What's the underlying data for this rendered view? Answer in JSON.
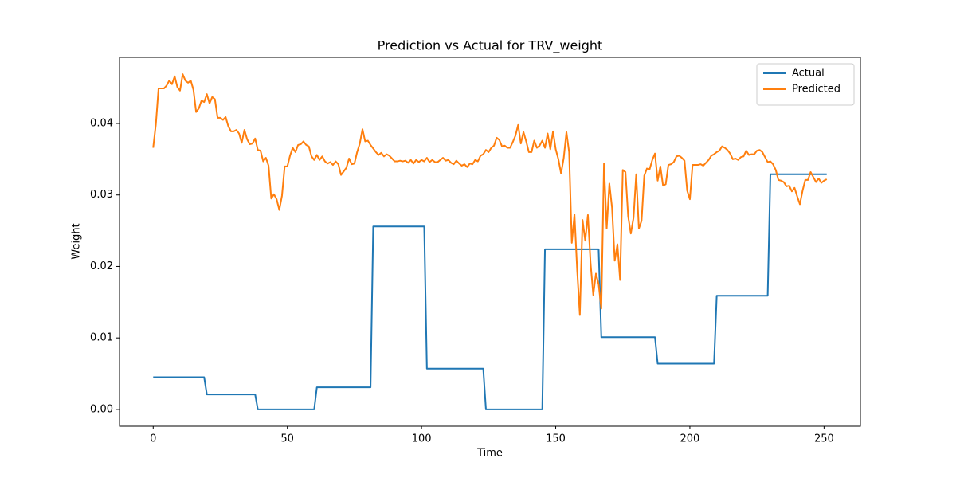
{
  "chart_data": {
    "type": "line",
    "title": "Prediction vs Actual for TRV_weight",
    "x_label": "Time",
    "y_label": "Weight",
    "x": [
      0,
      1,
      2,
      3,
      4,
      5,
      6,
      7,
      8,
      9,
      10,
      11,
      12,
      13,
      14,
      15,
      16,
      17,
      18,
      19,
      20,
      21,
      22,
      23,
      24,
      25,
      26,
      27,
      28,
      29,
      30,
      31,
      32,
      33,
      34,
      35,
      36,
      37,
      38,
      39,
      40,
      41,
      42,
      43,
      44,
      45,
      46,
      47,
      48,
      49,
      50,
      51,
      52,
      53,
      54,
      55,
      56,
      57,
      58,
      59,
      60,
      61,
      62,
      63,
      64,
      65,
      66,
      67,
      68,
      69,
      70,
      71,
      72,
      73,
      74,
      75,
      76,
      77,
      78,
      79,
      80,
      81,
      82,
      83,
      84,
      85,
      86,
      87,
      88,
      89,
      90,
      91,
      92,
      93,
      94,
      95,
      96,
      97,
      98,
      99,
      100,
      101,
      102,
      103,
      104,
      105,
      106,
      107,
      108,
      109,
      110,
      111,
      112,
      113,
      114,
      115,
      116,
      117,
      118,
      119,
      120,
      121,
      122,
      123,
      124,
      125,
      126,
      127,
      128,
      129,
      130,
      131,
      132,
      133,
      134,
      135,
      136,
      137,
      138,
      139,
      140,
      141,
      142,
      143,
      144,
      145,
      146,
      147,
      148,
      149,
      150,
      151,
      152,
      153,
      154,
      155,
      156,
      157,
      158,
      159,
      160,
      161,
      162,
      163,
      164,
      165,
      166,
      167,
      168,
      169,
      170,
      171,
      172,
      173,
      174,
      175,
      176,
      177,
      178,
      179,
      180,
      181,
      182,
      183,
      184,
      185,
      186,
      187,
      188,
      189,
      190,
      191,
      192,
      193,
      194,
      195,
      196,
      197,
      198,
      199,
      200,
      201,
      202,
      203,
      204,
      205,
      206,
      207,
      208,
      209,
      210,
      211,
      212,
      213,
      214,
      215,
      216,
      217,
      218,
      219,
      220,
      221,
      222,
      223,
      224,
      225,
      226,
      227,
      228,
      229,
      230,
      231,
      232,
      233,
      234,
      235,
      236,
      237,
      238,
      239,
      240,
      241,
      242,
      243,
      244,
      245,
      246,
      247,
      248,
      249,
      250,
      251
    ],
    "series": [
      {
        "name": "Actual",
        "color": "#1f77b4",
        "values": [
          0.0045,
          0.0045,
          0.0045,
          0.0045,
          0.0045,
          0.0045,
          0.0045,
          0.0045,
          0.0045,
          0.0045,
          0.0045,
          0.0045,
          0.0045,
          0.0045,
          0.0045,
          0.0045,
          0.0045,
          0.0045,
          0.0045,
          0.0045,
          0.0021,
          0.0021,
          0.0021,
          0.0021,
          0.0021,
          0.0021,
          0.0021,
          0.0021,
          0.0021,
          0.0021,
          0.0021,
          0.0021,
          0.0021,
          0.0021,
          0.0021,
          0.0021,
          0.0021,
          0.0021,
          0.0021,
          0,
          0,
          0,
          0,
          0,
          0,
          0,
          0,
          0,
          0,
          0,
          0,
          0,
          0,
          0,
          0,
          0,
          0,
          0,
          0,
          0,
          0,
          0.0031,
          0.0031,
          0.0031,
          0.0031,
          0.0031,
          0.0031,
          0.0031,
          0.0031,
          0.0031,
          0.0031,
          0.0031,
          0.0031,
          0.0031,
          0.0031,
          0.0031,
          0.0031,
          0.0031,
          0.0031,
          0.0031,
          0.0031,
          0.0031,
          0.0256,
          0.0256,
          0.0256,
          0.0256,
          0.0256,
          0.0256,
          0.0256,
          0.0256,
          0.0256,
          0.0256,
          0.0256,
          0.0256,
          0.0256,
          0.0256,
          0.0256,
          0.0256,
          0.0256,
          0.0256,
          0.0256,
          0.0256,
          0.0057,
          0.0057,
          0.0057,
          0.0057,
          0.0057,
          0.0057,
          0.0057,
          0.0057,
          0.0057,
          0.0057,
          0.0057,
          0.0057,
          0.0057,
          0.0057,
          0.0057,
          0.0057,
          0.0057,
          0.0057,
          0.0057,
          0.0057,
          0.0057,
          0.0057,
          0,
          0,
          0,
          0,
          0,
          0,
          0,
          0,
          0,
          0,
          0,
          0,
          0,
          0,
          0,
          0,
          0,
          0,
          0,
          0,
          0,
          0,
          0.0224,
          0.0224,
          0.0224,
          0.0224,
          0.0224,
          0.0224,
          0.0224,
          0.0224,
          0.0224,
          0.0224,
          0.0224,
          0.0224,
          0.0224,
          0.0224,
          0.0224,
          0.0224,
          0.0224,
          0.0224,
          0.0224,
          0.0224,
          0.0224,
          0.0101,
          0.0101,
          0.0101,
          0.0101,
          0.0101,
          0.0101,
          0.0101,
          0.0101,
          0.0101,
          0.0101,
          0.0101,
          0.0101,
          0.0101,
          0.0101,
          0.0101,
          0.0101,
          0.0101,
          0.0101,
          0.0101,
          0.0101,
          0.0101,
          0.0064,
          0.0064,
          0.0064,
          0.0064,
          0.0064,
          0.0064,
          0.0064,
          0.0064,
          0.0064,
          0.0064,
          0.0064,
          0.0064,
          0.0064,
          0.0064,
          0.0064,
          0.0064,
          0.0064,
          0.0064,
          0.0064,
          0.0064,
          0.0064,
          0.0064,
          0.0159,
          0.0159,
          0.0159,
          0.0159,
          0.0159,
          0.0159,
          0.0159,
          0.0159,
          0.0159,
          0.0159,
          0.0159,
          0.0159,
          0.0159,
          0.0159,
          0.0159,
          0.0159,
          0.0159,
          0.0159,
          0.0159,
          0.0159,
          0.0329,
          0.0329,
          0.0329,
          0.0329,
          0.0329,
          0.0329,
          0.0329,
          0.0329,
          0.0329,
          0.0329,
          0.0329,
          0.0329,
          0.0329,
          0.0329,
          0.0329,
          0.0329,
          0.0329,
          0.0329,
          0.0329,
          0.0329,
          0.0329,
          0.0329
        ]
      },
      {
        "name": "Predicted",
        "color": "#ff7f0e",
        "values": [
          0.0366,
          0.0399,
          0.0449,
          0.0449,
          0.0449,
          0.0453,
          0.046,
          0.0455,
          0.0466,
          0.0451,
          0.0446,
          0.0469,
          0.046,
          0.0457,
          0.046,
          0.0447,
          0.0416,
          0.0421,
          0.0432,
          0.043,
          0.0441,
          0.0428,
          0.0437,
          0.0434,
          0.0408,
          0.0408,
          0.0405,
          0.0409,
          0.0396,
          0.0389,
          0.0389,
          0.0391,
          0.0386,
          0.0373,
          0.0391,
          0.0378,
          0.0371,
          0.0372,
          0.0379,
          0.0363,
          0.0362,
          0.0347,
          0.0352,
          0.0341,
          0.0295,
          0.0301,
          0.0294,
          0.0279,
          0.0299,
          0.034,
          0.034,
          0.0355,
          0.0366,
          0.036,
          0.037,
          0.0371,
          0.0375,
          0.037,
          0.0368,
          0.0354,
          0.0349,
          0.0356,
          0.0349,
          0.0354,
          0.0347,
          0.0344,
          0.0346,
          0.0342,
          0.0347,
          0.0343,
          0.0328,
          0.0333,
          0.0338,
          0.0351,
          0.0343,
          0.0344,
          0.036,
          0.0372,
          0.0392,
          0.0375,
          0.0376,
          0.037,
          0.0365,
          0.036,
          0.0356,
          0.0359,
          0.0354,
          0.0357,
          0.0355,
          0.0351,
          0.0347,
          0.0347,
          0.0348,
          0.0347,
          0.0348,
          0.0345,
          0.0349,
          0.0344,
          0.0349,
          0.0346,
          0.0349,
          0.0347,
          0.0352,
          0.0346,
          0.0349,
          0.0346,
          0.0346,
          0.0349,
          0.0352,
          0.0348,
          0.0349,
          0.0345,
          0.0343,
          0.0348,
          0.0344,
          0.0341,
          0.0343,
          0.0339,
          0.0344,
          0.0343,
          0.0349,
          0.0347,
          0.0355,
          0.0357,
          0.0363,
          0.036,
          0.0366,
          0.0369,
          0.038,
          0.0377,
          0.0368,
          0.0369,
          0.0366,
          0.0366,
          0.0374,
          0.0383,
          0.0398,
          0.0372,
          0.0388,
          0.0375,
          0.036,
          0.036,
          0.0376,
          0.0366,
          0.0369,
          0.0376,
          0.0366,
          0.0386,
          0.0364,
          0.0389,
          0.0364,
          0.035,
          0.033,
          0.0352,
          0.0388,
          0.036,
          0.0233,
          0.0273,
          0.0195,
          0.0132,
          0.0265,
          0.0236,
          0.0272,
          0.0204,
          0.016,
          0.019,
          0.0175,
          0.0141,
          0.0344,
          0.0253,
          0.0316,
          0.0282,
          0.0208,
          0.0231,
          0.0181,
          0.0335,
          0.0332,
          0.027,
          0.0246,
          0.0268,
          0.0329,
          0.0253,
          0.0264,
          0.0327,
          0.0337,
          0.0336,
          0.0349,
          0.0358,
          0.032,
          0.034,
          0.0313,
          0.0315,
          0.0342,
          0.0343,
          0.0346,
          0.0354,
          0.0355,
          0.0352,
          0.0348,
          0.0306,
          0.0294,
          0.0342,
          0.0342,
          0.0342,
          0.0343,
          0.0341,
          0.0345,
          0.0349,
          0.0355,
          0.0357,
          0.036,
          0.0362,
          0.0368,
          0.0366,
          0.0363,
          0.0358,
          0.035,
          0.0351,
          0.0349,
          0.0353,
          0.0354,
          0.0362,
          0.0356,
          0.0357,
          0.0357,
          0.0362,
          0.0363,
          0.036,
          0.0353,
          0.0346,
          0.0347,
          0.0343,
          0.0335,
          0.0321,
          0.032,
          0.0318,
          0.0312,
          0.0313,
          0.0305,
          0.031,
          0.0298,
          0.0287,
          0.0306,
          0.0321,
          0.0321,
          0.0332,
          0.0325,
          0.0318,
          0.0323,
          0.0317,
          0.032,
          0.0322
        ]
      }
    ],
    "xlim": [
      -12.55,
      263.55
    ],
    "xticks": [
      0,
      50,
      100,
      150,
      200,
      250
    ],
    "ylim": [
      -0.00235,
      0.04925
    ],
    "yticks": [
      {
        "value": 0,
        "label": "0.00"
      },
      {
        "value": 0.01,
        "label": "0.01"
      },
      {
        "value": 0.02,
        "label": "0.02"
      },
      {
        "value": 0.03,
        "label": "0.03"
      },
      {
        "value": 0.04,
        "label": "0.04"
      }
    ],
    "grid": false,
    "legend": "upper right"
  }
}
